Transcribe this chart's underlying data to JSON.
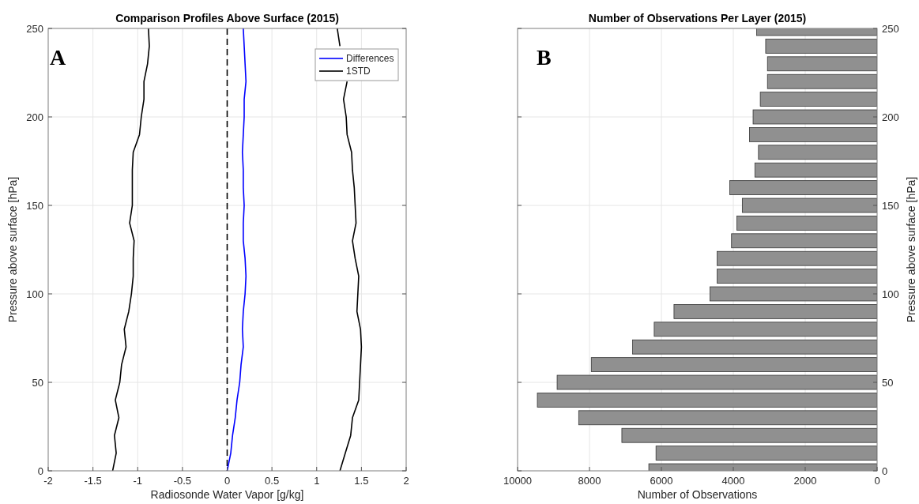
{
  "chart_data": [
    {
      "type": "line",
      "title": "Comparison Profiles Above Surface (2015)",
      "xlabel": "Radiosonde Water Vapor [g/kg]",
      "ylabel": "Pressure above surface [hPa]",
      "xlim": [
        -2,
        2
      ],
      "xticks": [
        -2,
        -1.5,
        -1,
        -0.5,
        0,
        0.5,
        1,
        1.5,
        2
      ],
      "ylim": [
        0,
        250
      ],
      "yticks": [
        0,
        50,
        100,
        150,
        200,
        250
      ],
      "grid": true,
      "legend": "top right",
      "line_style": "solid",
      "series": [
        {
          "name": "Differences",
          "color": "#0000ff",
          "x": [
            0,
            0.04,
            0.06,
            0.09,
            0.11,
            0.14,
            0.155,
            0.18,
            0.17,
            0.18,
            0.2,
            0.21,
            0.2,
            0.18,
            0.18,
            0.19,
            0.18,
            0.18,
            0.17,
            0.18,
            0.19,
            0.19,
            0.21,
            0.2,
            0.19,
            0.18
          ],
          "values": [
            0,
            10,
            20,
            30,
            40,
            50,
            60,
            70,
            80,
            90,
            100,
            110,
            120,
            130,
            140,
            150,
            160,
            170,
            180,
            190,
            200,
            210,
            220,
            230,
            240,
            250
          ]
        },
        {
          "name": "1STD",
          "color": "#000000",
          "x": [
            -1.28,
            -1.24,
            -1.26,
            -1.21,
            -1.25,
            -1.2,
            -1.18,
            -1.13,
            -1.15,
            -1.1,
            -1.07,
            -1.05,
            -1.05,
            -1.04,
            -1.09,
            -1.06,
            -1.06,
            -1.06,
            -1.05,
            -0.98,
            -0.96,
            -0.93,
            -0.93,
            -0.89,
            -0.87,
            -0.88
          ],
          "values": [
            0,
            10,
            20,
            30,
            40,
            50,
            60,
            70,
            80,
            90,
            100,
            110,
            120,
            130,
            140,
            150,
            160,
            170,
            180,
            190,
            200,
            210,
            220,
            230,
            240,
            250
          ]
        },
        {
          "color": "#000000",
          "x": [
            1.26,
            1.32,
            1.38,
            1.4,
            1.47,
            1.48,
            1.49,
            1.5,
            1.49,
            1.45,
            1.46,
            1.47,
            1.43,
            1.4,
            1.44,
            1.43,
            1.42,
            1.4,
            1.39,
            1.34,
            1.33,
            1.3,
            1.34,
            null,
            1.26,
            1.23
          ],
          "values": [
            0,
            10,
            20,
            30,
            40,
            50,
            60,
            70,
            80,
            90,
            100,
            110,
            120,
            130,
            140,
            150,
            160,
            170,
            180,
            190,
            200,
            210,
            220,
            null,
            240,
            250
          ]
        }
      ],
      "ref_lines": [
        {
          "axis": "x",
          "value": 0,
          "color": "#000000",
          "line_style": "dashed"
        }
      ],
      "annotations": [
        "A"
      ]
    },
    {
      "type": "bar",
      "orientation": "horizontal",
      "title": "Number of Observations Per Layer (2015)",
      "xlabel": "Number of Observations",
      "ylabel": "Pressure above surface [hPa]",
      "xlim": [
        10000,
        0
      ],
      "xticks": [
        10000,
        8000,
        6000,
        4000,
        2000,
        0
      ],
      "ylim": [
        0,
        250
      ],
      "yticks": [
        0,
        50,
        100,
        150,
        200,
        250
      ],
      "grid": true,
      "x": [
        0,
        10,
        20,
        30,
        40,
        50,
        60,
        70,
        80,
        90,
        100,
        110,
        120,
        130,
        140,
        150,
        160,
        170,
        180,
        190,
        200,
        210,
        220,
        230,
        240,
        250
      ],
      "values": [
        6350,
        6150,
        7100,
        8300,
        9450,
        8900,
        7950,
        6800,
        6200,
        5650,
        4650,
        4450,
        4450,
        4050,
        3900,
        3750,
        4100,
        3400,
        3300,
        3550,
        3450,
        3250,
        3050,
        3050,
        3100,
        3350
      ],
      "color": "#909090",
      "annotations": [
        "B"
      ]
    }
  ]
}
